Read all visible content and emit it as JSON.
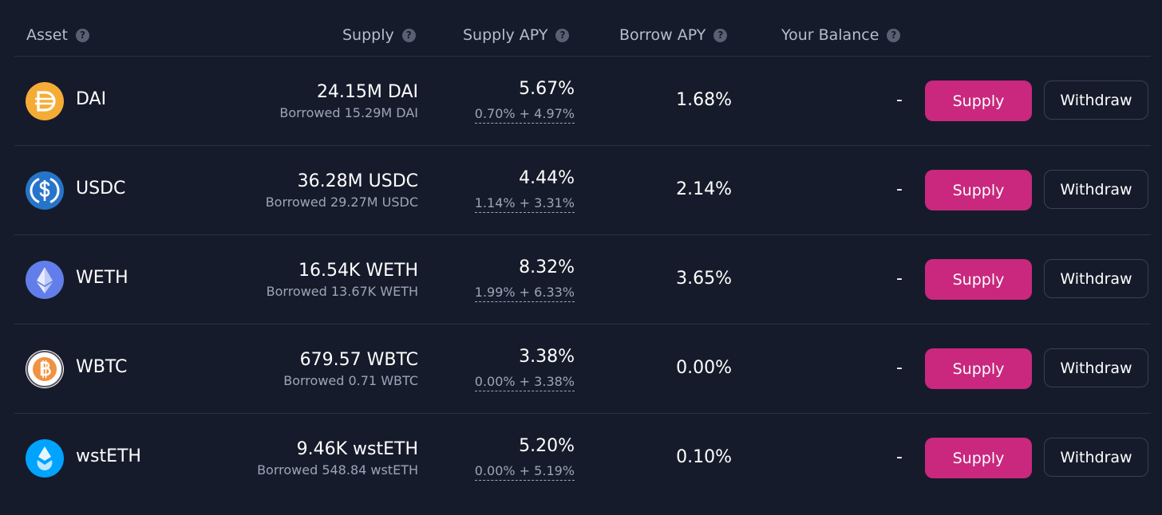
{
  "header": {
    "asset": "Asset",
    "supply": "Supply",
    "supply_apy": "Supply APY",
    "borrow_apy": "Borrow APY",
    "your_balance": "Your Balance",
    "help_glyph": "?"
  },
  "rows": [
    {
      "name": "DAI",
      "supply": "24.15M DAI",
      "borrowed": "Borrowed 15.29M DAI",
      "apy": "5.67%",
      "apy_breakdown": "0.70% + 4.97%",
      "borrow_apy": "1.68%",
      "balance": "-",
      "supply_label": "Supply",
      "withdraw_label": "Withdraw",
      "icon": "dai-icon",
      "color": "#f5ac37"
    },
    {
      "name": "USDC",
      "supply": "36.28M USDC",
      "borrowed": "Borrowed 29.27M USDC",
      "apy": "4.44%",
      "apy_breakdown": "1.14% + 3.31%",
      "borrow_apy": "2.14%",
      "balance": "-",
      "supply_label": "Supply",
      "withdraw_label": "Withdraw",
      "icon": "usdc-icon",
      "color": "#2775ca"
    },
    {
      "name": "WETH",
      "supply": "16.54K WETH",
      "borrowed": "Borrowed 13.67K WETH",
      "apy": "8.32%",
      "apy_breakdown": "1.99% + 6.33%",
      "borrow_apy": "3.65%",
      "balance": "-",
      "supply_label": "Supply",
      "withdraw_label": "Withdraw",
      "icon": "weth-icon",
      "color": "#627eea"
    },
    {
      "name": "WBTC",
      "supply": "679.57 WBTC",
      "borrowed": "Borrowed 0.71 WBTC",
      "apy": "3.38%",
      "apy_breakdown": "0.00% + 3.38%",
      "borrow_apy": "0.00%",
      "balance": "-",
      "supply_label": "Supply",
      "withdraw_label": "Withdraw",
      "icon": "wbtc-icon",
      "color": "#f09242"
    },
    {
      "name": "wstETH",
      "supply": "9.46K wstETH",
      "borrowed": "Borrowed 548.84 wstETH",
      "apy": "5.20%",
      "apy_breakdown": "0.00% + 5.19%",
      "borrow_apy": "0.10%",
      "balance": "-",
      "supply_label": "Supply",
      "withdraw_label": "Withdraw",
      "icon": "wsteth-icon",
      "color": "#00a3ff"
    }
  ],
  "colors": {
    "background": "#161b2b",
    "supply_button": "#c9287e",
    "divider": "#2b3142",
    "muted_text": "#9ea4b6"
  }
}
